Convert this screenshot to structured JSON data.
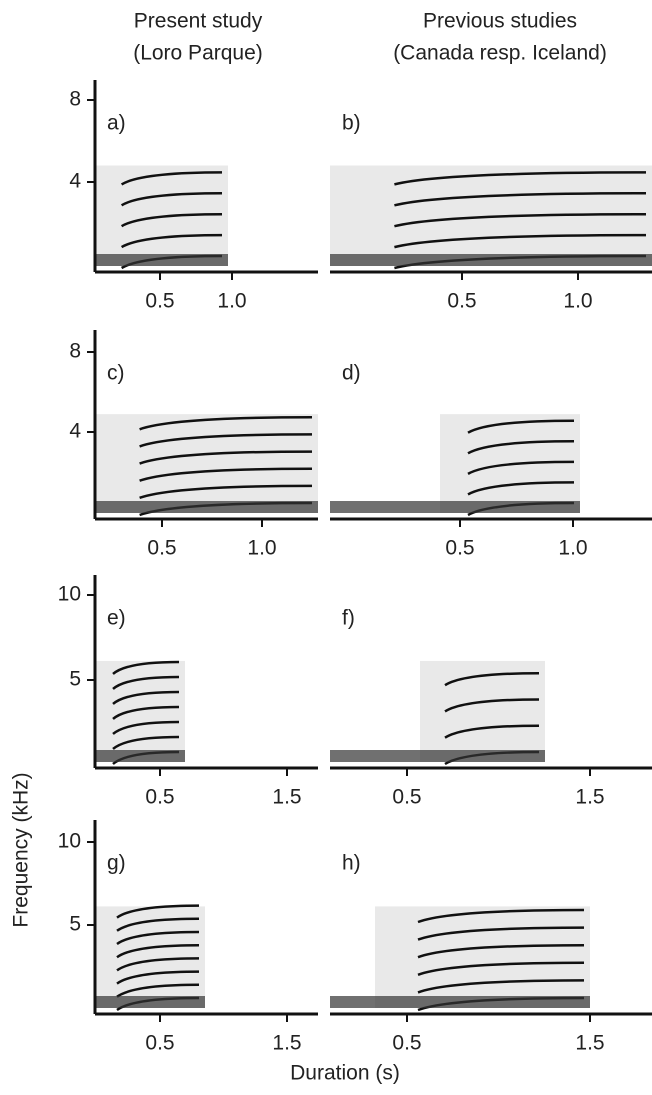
{
  "columns": [
    {
      "title": "Present study",
      "subtitle": "(Loro Parque)"
    },
    {
      "title": "Previous studies",
      "subtitle": "(Canada resp. Iceland)"
    }
  ],
  "y_label": "Frequency (kHz)",
  "x_label": "Duration (s)",
  "panels": [
    {
      "label": "a)",
      "yticks": [
        "8",
        "4"
      ],
      "xticks": [
        "0.5",
        "1.0"
      ]
    },
    {
      "label": "b)",
      "xticks": [
        "0.5",
        "1.0"
      ]
    },
    {
      "label": "c)",
      "yticks": [
        "8",
        "4"
      ],
      "xticks": [
        "0.5",
        "1.0"
      ]
    },
    {
      "label": "d)",
      "xticks": [
        "0.5",
        "1.0"
      ]
    },
    {
      "label": "e)",
      "yticks": [
        "10",
        "5"
      ],
      "xticks": [
        "0.5",
        "1.5"
      ]
    },
    {
      "label": "f)",
      "xticks": [
        "0.5",
        "1.5"
      ]
    },
    {
      "label": "g)",
      "yticks": [
        "10",
        "5"
      ],
      "xticks": [
        "0.5",
        "1.5"
      ]
    },
    {
      "label": "h)",
      "xticks": [
        "0.5",
        "1.5"
      ]
    }
  ]
}
